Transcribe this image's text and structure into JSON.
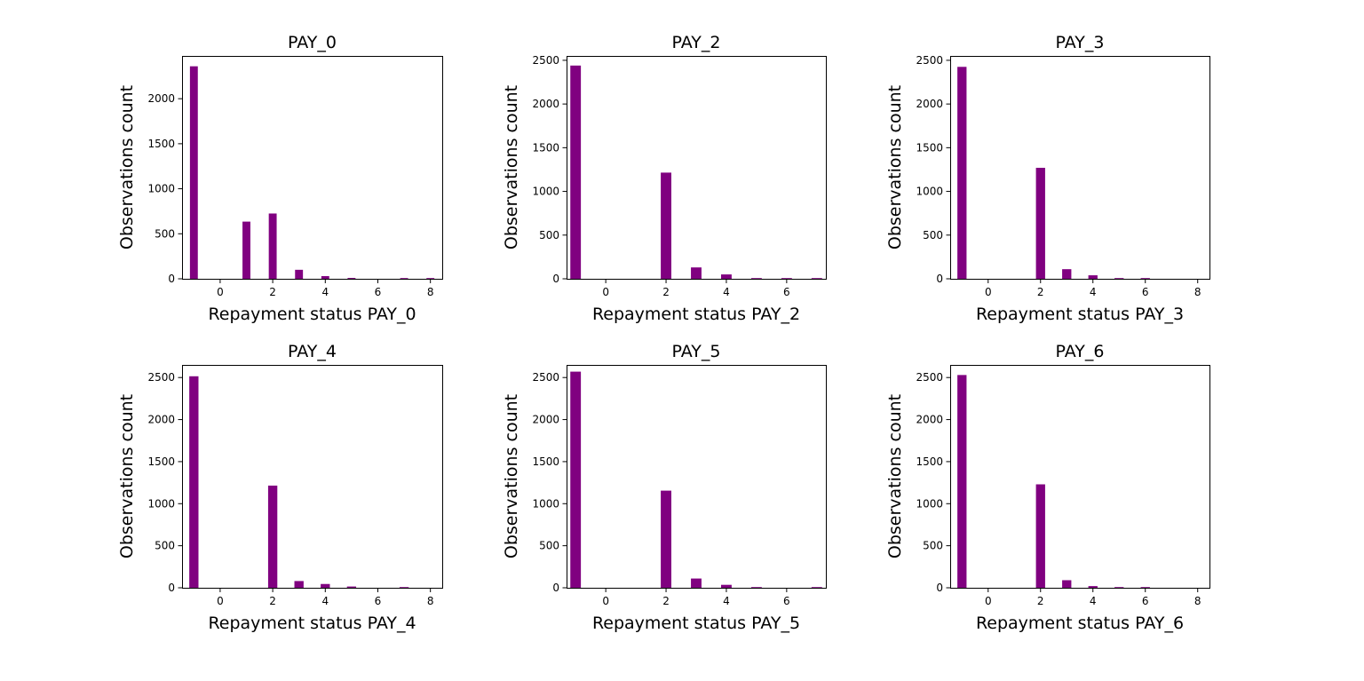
{
  "style": {
    "bar_color": "#800080",
    "frame_color": "#000000",
    "background": "#ffffff"
  },
  "chart_data": [
    {
      "type": "bar",
      "title": "PAY_0",
      "xlabel": "Repayment status PAY_0",
      "ylabel": "Observations count",
      "xlim": [
        -1.45,
        8.45
      ],
      "ylim": [
        0,
        2475
      ],
      "xticks": [
        0,
        2,
        4,
        6,
        8
      ],
      "yticks": [
        0,
        500,
        1000,
        1500,
        2000
      ],
      "grid": false,
      "legend": "none",
      "bar_width": 0.3,
      "x": [
        -1,
        1,
        2,
        3,
        4,
        5,
        7,
        8
      ],
      "values": [
        2360,
        635,
        725,
        100,
        30,
        10,
        8,
        8
      ]
    },
    {
      "type": "bar",
      "title": "PAY_2",
      "xlabel": "Repayment status PAY_2",
      "ylabel": "Observations count",
      "xlim": [
        -1.3,
        7.3
      ],
      "ylim": [
        0,
        2550
      ],
      "xticks": [
        0,
        2,
        4,
        6
      ],
      "yticks": [
        0,
        500,
        1000,
        1500,
        2000,
        2500
      ],
      "grid": false,
      "legend": "none",
      "bar_width": 0.35,
      "x": [
        -1,
        2,
        3,
        4,
        5,
        6,
        7
      ],
      "values": [
        2440,
        1215,
        130,
        50,
        8,
        8,
        8
      ]
    },
    {
      "type": "bar",
      "title": "PAY_3",
      "xlabel": "Repayment status PAY_3",
      "ylabel": "Observations count",
      "xlim": [
        -1.45,
        8.45
      ],
      "ylim": [
        0,
        2550
      ],
      "xticks": [
        0,
        2,
        4,
        6,
        8
      ],
      "yticks": [
        0,
        500,
        1000,
        1500,
        2000,
        2500
      ],
      "grid": false,
      "legend": "none",
      "bar_width": 0.35,
      "x": [
        -1,
        2,
        3,
        4,
        5,
        6
      ],
      "values": [
        2425,
        1270,
        110,
        40,
        8,
        8
      ]
    },
    {
      "type": "bar",
      "title": "PAY_4",
      "xlabel": "Repayment status PAY_4",
      "ylabel": "Observations count",
      "xlim": [
        -1.45,
        8.45
      ],
      "ylim": [
        0,
        2650
      ],
      "xticks": [
        0,
        2,
        4,
        6,
        8
      ],
      "yticks": [
        0,
        500,
        1000,
        1500,
        2000,
        2500
      ],
      "grid": false,
      "legend": "none",
      "bar_width": 0.35,
      "x": [
        -1,
        2,
        3,
        4,
        5,
        7
      ],
      "values": [
        2515,
        1215,
        80,
        45,
        15,
        8
      ]
    },
    {
      "type": "bar",
      "title": "PAY_5",
      "xlabel": "Repayment status PAY_5",
      "ylabel": "Observations count",
      "xlim": [
        -1.3,
        7.3
      ],
      "ylim": [
        0,
        2650
      ],
      "xticks": [
        0,
        2,
        4,
        6
      ],
      "yticks": [
        0,
        500,
        1000,
        1500,
        2000,
        2500
      ],
      "grid": false,
      "legend": "none",
      "bar_width": 0.35,
      "x": [
        -1,
        2,
        3,
        4,
        5,
        7
      ],
      "values": [
        2570,
        1155,
        110,
        35,
        8,
        8
      ]
    },
    {
      "type": "bar",
      "title": "PAY_6",
      "xlabel": "Repayment status PAY_6",
      "ylabel": "Observations count",
      "xlim": [
        -1.45,
        8.45
      ],
      "ylim": [
        0,
        2650
      ],
      "xticks": [
        0,
        2,
        4,
        6,
        8
      ],
      "yticks": [
        0,
        500,
        1000,
        1500,
        2000,
        2500
      ],
      "grid": false,
      "legend": "none",
      "bar_width": 0.35,
      "x": [
        -1,
        2,
        3,
        4,
        5,
        6
      ],
      "values": [
        2530,
        1230,
        90,
        20,
        8,
        8
      ]
    }
  ]
}
